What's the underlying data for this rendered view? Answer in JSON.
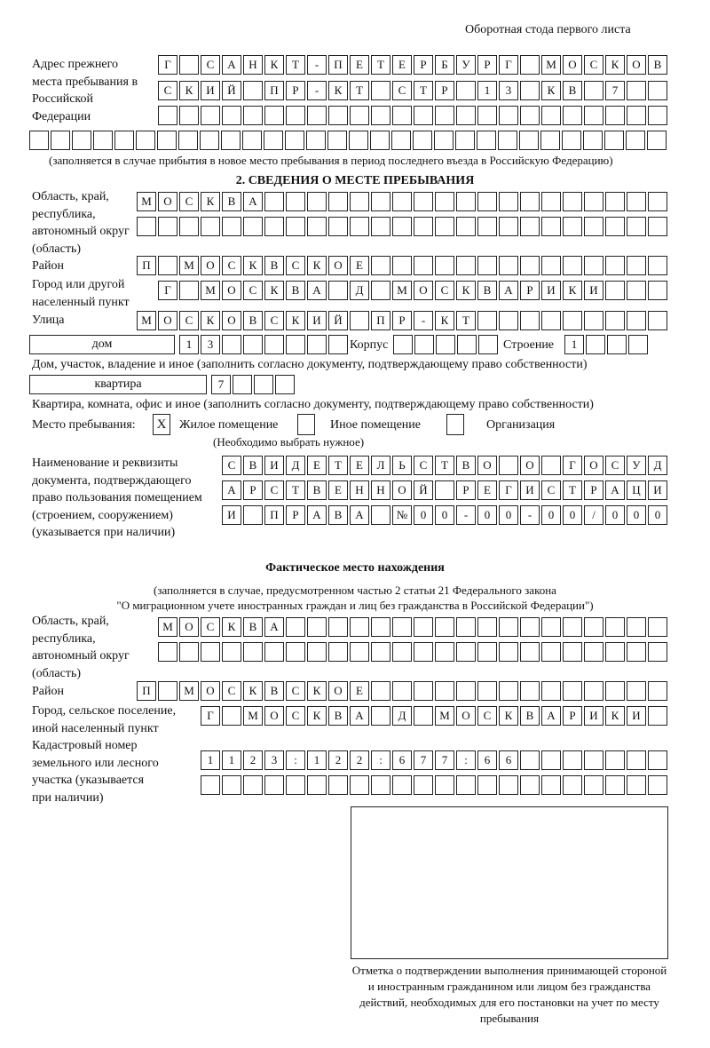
{
  "header": "Оборотная стода первого листа",
  "prev_address": {
    "label": "Адрес прежнего места пребывания в Российской Федерации",
    "rows": [
      "Г САНКТ-ПЕТЕРБУРГ МОСКОВ",
      "СКИЙ ПР-КТ СТР 13 КВ 7  ",
      "                        "
    ],
    "row_full": "                              ",
    "note": "(заполняется в случае прибытия в новое место пребывания в период последнего въезда в Российскую Федерацию)"
  },
  "section2": {
    "title": "2. СВЕДЕНИЯ О МЕСТЕ ПРЕБЫВАНИЯ",
    "region_label": "Область, край, республика, автономный округ (область)",
    "region_rows": [
      "МОСКВА                   ",
      "                         "
    ],
    "district_label": "Район",
    "district": "П МОСКВСКОЕ              ",
    "city_label": "Город или другой населенный пункт",
    "city": "Г МОСКВА Д МОСКВАРИКИ   ",
    "street_label": "Улица",
    "street": "МОСКОВСКИЙ ПР-КТ         ",
    "house_type": "дом",
    "house": "13      ",
    "korpus_label": "Корпус",
    "korpus": "     ",
    "building_label": "Строение",
    "building": "1   ",
    "house_note": "Дом, участок, владение и иное (заполнить согласно документу, подтверждающему право собственности)",
    "apt_type": "квартира",
    "apt": "7   ",
    "apt_note": "Квартира, комната, офис и иное (заполнить согласно документу, подтверждающему право собственности)",
    "stay_label": "Место пребывания:",
    "options": [
      {
        "label": "Жилое помещение",
        "mark": "X"
      },
      {
        "label": "Иное помещение",
        "mark": ""
      },
      {
        "label": "Организация",
        "mark": ""
      }
    ],
    "choose_note": "(Необходимо выбрать нужное)",
    "doc_label": "Наименование и реквизиты документа, подтверждающего право пользования помещением (строением, сооружением) (указывается при наличии)",
    "doc_rows": [
      "СВИДЕТЕЛЬСТВО О ГОСУД",
      "АРСТВЕННОЙ РЕГИСТРАЦИ",
      "И ПРАВА №00-00-00/000"
    ]
  },
  "actual": {
    "title": "Фактическое место нахождения",
    "subtitle1": "(заполняется в случае, предусмотренном частью 2 статьи 21 Федерального закона",
    "subtitle2": "\"О миграционном учете иностранных граждан и лиц без гражданства в Российской Федерации\")",
    "region_label": "Область, край, республика, автономный округ (область)",
    "region_rows": [
      "МОСКВА                  ",
      "                        "
    ],
    "district_label": "Район",
    "district": "П МОСКВСКОЕ              ",
    "city_label": "Город, сельское поселение, иной населенный пункт",
    "city": "Г МОСКВА Д МОСКВАРИКИ ",
    "cadastral_label": "Кадастровый номер земельного или лесного участка (указывается при наличии)",
    "cadastral_rows": [
      "1123:122:677:66       ",
      "                      "
    ]
  },
  "stamp": {
    "caption": "Отметка о подтверждении выполнения принимающей стороной и иностранным гражданином или лицом без гражданства действий, необходимых для его постановки на учет по месту пребывания"
  }
}
